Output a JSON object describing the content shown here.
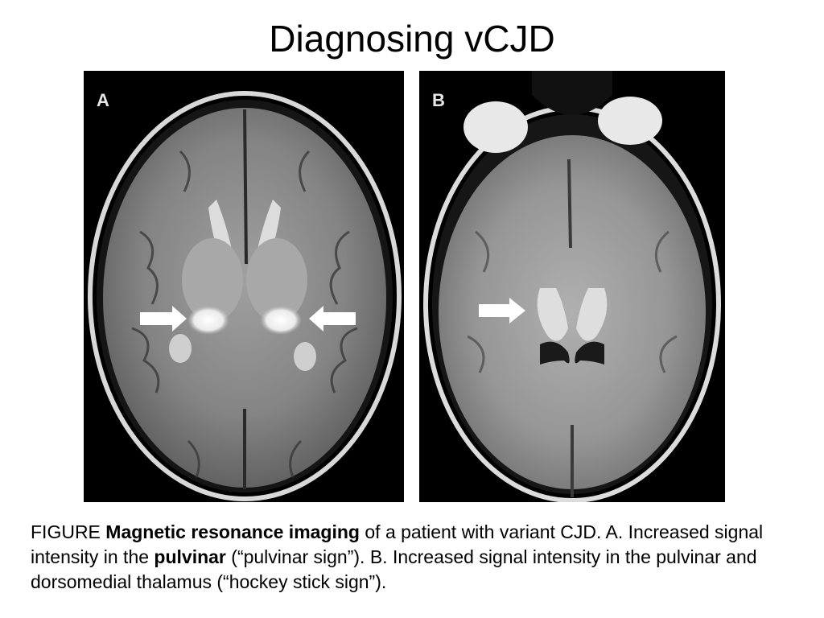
{
  "slide": {
    "title": "Diagnosing vCJD"
  },
  "figure": {
    "panels": [
      {
        "label": "A"
      },
      {
        "label": "B"
      }
    ],
    "caption": {
      "prefix": "FIGURE ",
      "bold1": "Magnetic resonance imaging",
      "part2": " of a patient with variant CJD. A. Increased signal intensity in the ",
      "bold2": "pulvinar",
      "part3": " (“pulvinar sign”). B. Increased signal intensity in the pulvinar and dorsomedial thalamus (“hockey stick sign”)."
    }
  },
  "colors": {
    "background": "#ffffff",
    "mri_background": "#000000",
    "brain_tissue": "#8a8a8a",
    "hyperintensity": "#f2f2f2"
  }
}
